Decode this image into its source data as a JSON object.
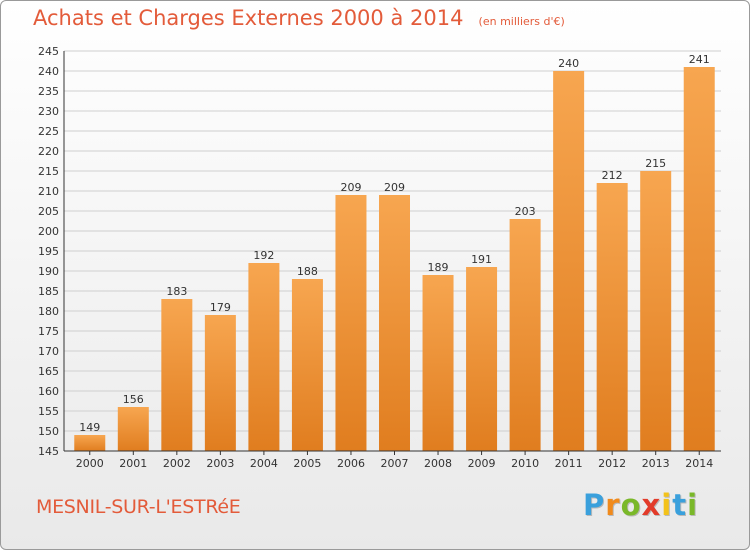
{
  "header": {
    "title": "Achats et Charges Externes 2000 à 2014",
    "unit": "(en milliers d'€)"
  },
  "footer": {
    "commune": "MESNIL-SUR-L'ESTRéE"
  },
  "brand": {
    "letters": [
      "P",
      "r",
      "o",
      "x",
      "i",
      "t",
      "i"
    ],
    "colors": [
      "#3aa0dc",
      "#f08a1c",
      "#7ab829",
      "#e23b2a",
      "#f3c21a",
      "#3aa0dc",
      "#7ab829"
    ]
  },
  "colors": {
    "bar_light": "#f7a650",
    "bar_dark": "#e07d1f",
    "grid": "#cfcfcf",
    "axis": "#333333"
  },
  "chart_data": {
    "type": "bar",
    "title": "Achats et Charges Externes 2000 à 2014",
    "subtitle": "(en milliers d'€)",
    "xlabel": "",
    "ylabel": "",
    "categories": [
      "2000",
      "2001",
      "2002",
      "2003",
      "2004",
      "2005",
      "2006",
      "2007",
      "2008",
      "2009",
      "2010",
      "2011",
      "2012",
      "2013",
      "2014"
    ],
    "values": [
      149,
      156,
      183,
      179,
      192,
      188,
      209,
      209,
      189,
      191,
      203,
      240,
      212,
      215,
      241
    ],
    "value_labels": [
      "149",
      "156",
      "183",
      "179",
      "192",
      "188",
      "209",
      "209",
      "189",
      "191",
      "203",
      "240",
      "212",
      "215",
      "241"
    ],
    "ylim": [
      145,
      245
    ],
    "yticks": [
      "145",
      "150",
      "155",
      "160",
      "165",
      "170",
      "175",
      "180",
      "185",
      "190",
      "195",
      "200",
      "205",
      "210",
      "215",
      "220",
      "225",
      "230",
      "235",
      "240",
      "245"
    ],
    "grid": true,
    "legend": "none"
  }
}
